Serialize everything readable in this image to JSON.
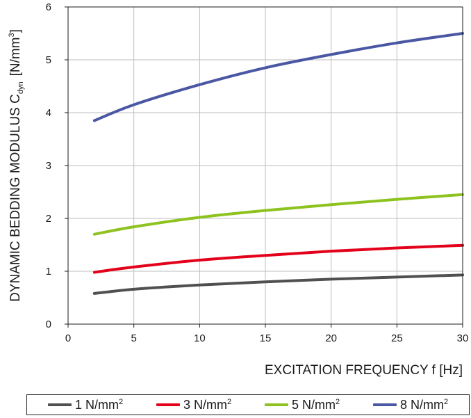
{
  "chart_data": {
    "type": "line",
    "xlabel": "EXCITATION FREQUENCY f [Hz]",
    "ylabel": {
      "prefix": "DYNAMIC BEDDING MODULUS C",
      "subscript": "dyn",
      "unit_open": "[N/mm",
      "unit_exp": "3",
      "unit_close": "]"
    },
    "xlim": [
      0,
      30
    ],
    "ylim": [
      0,
      6
    ],
    "xticks": [
      0,
      5,
      10,
      15,
      20,
      25,
      30
    ],
    "yticks": [
      0,
      1,
      2,
      3,
      4,
      5,
      6
    ],
    "grid": true,
    "legend_position": "bottom",
    "series": [
      {
        "name": "1 N/mm2",
        "color": "#505050",
        "x": [
          2,
          5,
          10,
          15,
          20,
          25,
          30
        ],
        "y": [
          0.58,
          0.66,
          0.74,
          0.8,
          0.85,
          0.89,
          0.93
        ]
      },
      {
        "name": "3 N/mm2",
        "color": "#e3001b",
        "x": [
          2,
          5,
          10,
          15,
          20,
          25,
          30
        ],
        "y": [
          0.98,
          1.08,
          1.21,
          1.3,
          1.38,
          1.44,
          1.49
        ]
      },
      {
        "name": "5 N/mm2",
        "color": "#8dc21f",
        "x": [
          2,
          5,
          10,
          15,
          20,
          25,
          30
        ],
        "y": [
          1.7,
          1.84,
          2.02,
          2.15,
          2.26,
          2.36,
          2.45
        ]
      },
      {
        "name": "8 N/mm2",
        "color": "#4a58a4",
        "x": [
          2,
          5,
          10,
          15,
          20,
          25,
          30
        ],
        "y": [
          3.85,
          4.15,
          4.53,
          4.85,
          5.1,
          5.32,
          5.5
        ]
      }
    ]
  },
  "legend": [
    {
      "value": "1 N/mm",
      "exp": "2"
    },
    {
      "value": "3 N/mm",
      "exp": "2"
    },
    {
      "value": "5 N/mm",
      "exp": "2"
    },
    {
      "value": "8 N/mm",
      "exp": "2"
    }
  ]
}
